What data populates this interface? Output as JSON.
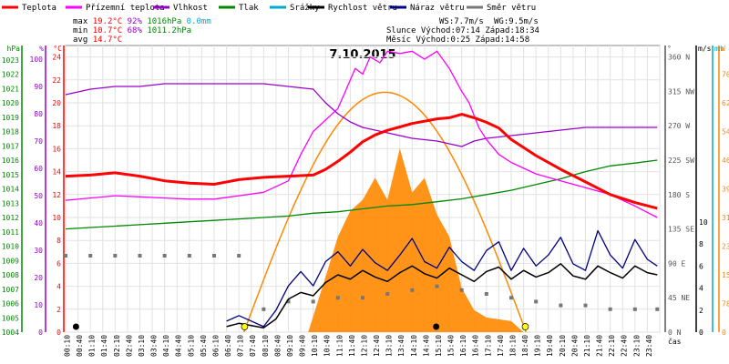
{
  "chart_data": {
    "type": "line",
    "title": "7.10.2015",
    "legend": [
      {
        "label": "Teplota",
        "color": "#ff0000"
      },
      {
        "label": "Přízemní teplota",
        "color": "#ff00ff"
      },
      {
        "label": "Vlhkost",
        "color": "#9900cc"
      },
      {
        "label": "Tlak",
        "color": "#008800"
      },
      {
        "label": "Srážky",
        "color": "#00aacc"
      },
      {
        "label": "Rychlost větru",
        "color": "#000000"
      },
      {
        "label": "Náraz větru",
        "color": "#000080"
      },
      {
        "label": "Směr větru",
        "color": "#777777"
      }
    ],
    "stats": {
      "rows": [
        {
          "label": "max",
          "temp": "19.2°C",
          "hum": "92%",
          "press": "1016hPa",
          "rain": "0.0mm"
        },
        {
          "label": "min",
          "temp": "10.7°C",
          "hum": "68%",
          "press": "1011.2hPa",
          "rain": ""
        },
        {
          "label": "avg",
          "temp": "14.7°C",
          "hum": "",
          "press": "",
          "rain": ""
        }
      ],
      "wind": "WS:7.7m/s",
      "gust": "WG:9.5m/s",
      "sun": "Slunce Východ:07:14  Západ:18:34",
      "moon": "Měsíc  Východ:0:25   Západ:14:58"
    },
    "axes": {
      "hpa_label": "hPa",
      "hpa_ticks": [
        "1004",
        "1005",
        "1006",
        "1007",
        "1008",
        "1009",
        "1010",
        "1011",
        "1012",
        "1013",
        "1014",
        "1015",
        "1016",
        "1017",
        "1018",
        "1019",
        "1020",
        "1021",
        "1022",
        "1023"
      ],
      "pct_label": "%",
      "pct_ticks": [
        "0",
        "10",
        "20",
        "30",
        "40",
        "50",
        "60",
        "70",
        "80",
        "90",
        "100"
      ],
      "c_label": "°C",
      "c_ticks": [
        "0",
        "2",
        "4",
        "6",
        "8",
        "10",
        "12",
        "14",
        "16",
        "18",
        "20",
        "22",
        "24"
      ],
      "deg_label": "°",
      "deg_ticks": [
        "0 N",
        "45 NE",
        "90 E",
        "135 SE",
        "180 S",
        "225 SW",
        "270 W",
        "315 NW",
        "360 N"
      ],
      "ms_label": "m/s",
      "ms_ticks": [
        "0",
        "2",
        "4",
        "6",
        "8",
        "10"
      ],
      "mm_label": "mm",
      "mm_ticks": [
        "0",
        "78",
        "156",
        "234",
        "312",
        "390",
        "468",
        "546",
        "624",
        "702"
      ],
      "w_label": "W",
      "x_label": "čas",
      "x_ticks": [
        "00:10",
        "00:40",
        "01:10",
        "01:40",
        "02:10",
        "02:40",
        "03:10",
        "03:40",
        "04:10",
        "04:40",
        "05:10",
        "05:40",
        "06:10",
        "06:40",
        "07:10",
        "07:40",
        "08:10",
        "08:40",
        "09:10",
        "09:40",
        "10:10",
        "10:40",
        "11:10",
        "11:40",
        "12:10",
        "12:40",
        "13:10",
        "13:40",
        "14:10",
        "14:40",
        "15:10",
        "15:40",
        "16:10",
        "16:40",
        "17:10",
        "17:40",
        "18:10",
        "18:40",
        "19:10",
        "19:40",
        "20:10",
        "20:40",
        "21:10",
        "21:40",
        "22:10",
        "22:40",
        "23:10",
        "23:40"
      ]
    },
    "x_range_hours": [
      0,
      24
    ],
    "series": [
      {
        "name": "Teplota",
        "unit": "°C",
        "color": "#ff0000",
        "points": [
          [
            0,
            13.6
          ],
          [
            1,
            13.7
          ],
          [
            2,
            13.9
          ],
          [
            3,
            13.6
          ],
          [
            4,
            13.2
          ],
          [
            5,
            13.0
          ],
          [
            6,
            12.9
          ],
          [
            7,
            13.3
          ],
          [
            8,
            13.5
          ],
          [
            9,
            13.6
          ],
          [
            10,
            13.7
          ],
          [
            10.5,
            14.2
          ],
          [
            11,
            14.9
          ],
          [
            11.5,
            15.7
          ],
          [
            12,
            16.6
          ],
          [
            12.5,
            17.2
          ],
          [
            13,
            17.6
          ],
          [
            13.5,
            17.9
          ],
          [
            14,
            18.2
          ],
          [
            14.5,
            18.4
          ],
          [
            15,
            18.6
          ],
          [
            15.5,
            18.7
          ],
          [
            16,
            19.0
          ],
          [
            16.5,
            18.7
          ],
          [
            17,
            18.3
          ],
          [
            17.5,
            17.8
          ],
          [
            18,
            16.8
          ],
          [
            19,
            15.4
          ],
          [
            20,
            14.2
          ],
          [
            21,
            13.1
          ],
          [
            22,
            12.0
          ],
          [
            23,
            11.3
          ],
          [
            23.9,
            10.8
          ]
        ]
      },
      {
        "name": "Přízemní teplota",
        "unit": "°C",
        "color": "#ff00ff",
        "points": [
          [
            0,
            11.5
          ],
          [
            1,
            11.7
          ],
          [
            2,
            11.9
          ],
          [
            3,
            11.8
          ],
          [
            4,
            11.7
          ],
          [
            5,
            11.6
          ],
          [
            6,
            11.6
          ],
          [
            7,
            11.9
          ],
          [
            8,
            12.2
          ],
          [
            9,
            13.2
          ],
          [
            9.5,
            15.5
          ],
          [
            10,
            17.5
          ],
          [
            10.5,
            18.5
          ],
          [
            11,
            19.5
          ],
          [
            11.3,
            21.0
          ],
          [
            11.7,
            23.0
          ],
          [
            12,
            22.5
          ],
          [
            12.3,
            24.0
          ],
          [
            12.7,
            23.5
          ],
          [
            13,
            24.5
          ],
          [
            13.5,
            24.3
          ],
          [
            14,
            24.5
          ],
          [
            14.5,
            23.8
          ],
          [
            15,
            24.5
          ],
          [
            15.5,
            23.0
          ],
          [
            16,
            21.0
          ],
          [
            16.3,
            20.0
          ],
          [
            16.7,
            17.8
          ],
          [
            17,
            16.8
          ],
          [
            17.5,
            15.5
          ],
          [
            18,
            14.8
          ],
          [
            19,
            13.8
          ],
          [
            20,
            13.2
          ],
          [
            21,
            12.6
          ],
          [
            22,
            12.0
          ],
          [
            23,
            11.0
          ],
          [
            23.9,
            10.0
          ]
        ]
      },
      {
        "name": "Vlhkost",
        "unit": "%",
        "color": "#9900cc",
        "points": [
          [
            0,
            87
          ],
          [
            1,
            89
          ],
          [
            2,
            90
          ],
          [
            3,
            90
          ],
          [
            4,
            91
          ],
          [
            5,
            91
          ],
          [
            6,
            91
          ],
          [
            7,
            91
          ],
          [
            8,
            91
          ],
          [
            9,
            90
          ],
          [
            10,
            89
          ],
          [
            10.5,
            84
          ],
          [
            11,
            80
          ],
          [
            11.5,
            77
          ],
          [
            12,
            75
          ],
          [
            13,
            73
          ],
          [
            14,
            71
          ],
          [
            15,
            70
          ],
          [
            16,
            68
          ],
          [
            16.5,
            70
          ],
          [
            17,
            71
          ],
          [
            18,
            72
          ],
          [
            19,
            73
          ],
          [
            20,
            74
          ],
          [
            21,
            75
          ],
          [
            22,
            75
          ],
          [
            23,
            75
          ],
          [
            23.9,
            75
          ]
        ]
      },
      {
        "name": "Tlak",
        "unit": "hPa",
        "color": "#008800",
        "points": [
          [
            0,
            1011.2
          ],
          [
            1,
            1011.3
          ],
          [
            2,
            1011.4
          ],
          [
            3,
            1011.5
          ],
          [
            4,
            1011.6
          ],
          [
            5,
            1011.7
          ],
          [
            6,
            1011.8
          ],
          [
            7,
            1011.9
          ],
          [
            8,
            1012.0
          ],
          [
            9,
            1012.1
          ],
          [
            10,
            1012.3
          ],
          [
            11,
            1012.4
          ],
          [
            12,
            1012.6
          ],
          [
            13,
            1012.8
          ],
          [
            14,
            1012.9
          ],
          [
            15,
            1013.1
          ],
          [
            16,
            1013.3
          ],
          [
            17,
            1013.6
          ],
          [
            18,
            1013.9
          ],
          [
            19,
            1014.3
          ],
          [
            20,
            1014.7
          ],
          [
            21,
            1015.2
          ],
          [
            22,
            1015.6
          ],
          [
            23,
            1015.8
          ],
          [
            23.9,
            1016.0
          ]
        ]
      },
      {
        "name": "Rychlost větru",
        "unit": "m/s",
        "color": "#000000",
        "points": [
          [
            6.5,
            0.5
          ],
          [
            7,
            0.8
          ],
          [
            8,
            0.4
          ],
          [
            8.5,
            1.2
          ],
          [
            9,
            3.0
          ],
          [
            9.5,
            3.6
          ],
          [
            10,
            3.3
          ],
          [
            10.5,
            4.5
          ],
          [
            11,
            5.2
          ],
          [
            11.5,
            4.8
          ],
          [
            12,
            5.6
          ],
          [
            12.5,
            5.0
          ],
          [
            13,
            4.6
          ],
          [
            13.5,
            5.4
          ],
          [
            14,
            6.0
          ],
          [
            14.5,
            5.3
          ],
          [
            15,
            4.9
          ],
          [
            15.5,
            5.8
          ],
          [
            16,
            5.2
          ],
          [
            16.5,
            4.6
          ],
          [
            17,
            5.5
          ],
          [
            17.5,
            5.9
          ],
          [
            18,
            4.8
          ],
          [
            18.5,
            5.6
          ],
          [
            19,
            5.0
          ],
          [
            19.5,
            5.4
          ],
          [
            20,
            6.2
          ],
          [
            20.5,
            5.1
          ],
          [
            21,
            4.8
          ],
          [
            21.5,
            6.0
          ],
          [
            22,
            5.4
          ],
          [
            22.5,
            4.9
          ],
          [
            23,
            6.0
          ],
          [
            23.5,
            5.4
          ],
          [
            23.9,
            5.2
          ]
        ]
      },
      {
        "name": "Náraz větru",
        "unit": "m/s",
        "color": "#000080",
        "points": [
          [
            6.5,
            1.0
          ],
          [
            7,
            1.5
          ],
          [
            8,
            0.5
          ],
          [
            8.5,
            2.0
          ],
          [
            9,
            4.2
          ],
          [
            9.5,
            5.5
          ],
          [
            10,
            4.2
          ],
          [
            10.5,
            6.4
          ],
          [
            11,
            7.3
          ],
          [
            11.5,
            6.0
          ],
          [
            12,
            7.5
          ],
          [
            12.5,
            6.3
          ],
          [
            13,
            5.6
          ],
          [
            13.5,
            7.0
          ],
          [
            14,
            8.5
          ],
          [
            14.5,
            6.4
          ],
          [
            15,
            5.8
          ],
          [
            15.5,
            7.7
          ],
          [
            16,
            6.4
          ],
          [
            16.5,
            5.6
          ],
          [
            17,
            7.4
          ],
          [
            17.5,
            8.2
          ],
          [
            18,
            5.6
          ],
          [
            18.5,
            7.6
          ],
          [
            19,
            6.0
          ],
          [
            19.5,
            7.0
          ],
          [
            20,
            8.6
          ],
          [
            20.5,
            6.2
          ],
          [
            21,
            5.6
          ],
          [
            21.5,
            9.2
          ],
          [
            22,
            7.0
          ],
          [
            22.5,
            5.8
          ],
          [
            23,
            8.4
          ],
          [
            23.5,
            6.6
          ],
          [
            23.9,
            6.0
          ]
        ]
      },
      {
        "name": "Směr větru",
        "unit": "°",
        "color": "#777777",
        "points": [
          [
            0,
            100
          ],
          [
            1,
            100
          ],
          [
            2,
            100
          ],
          [
            3,
            100
          ],
          [
            4,
            100
          ],
          [
            5,
            100
          ],
          [
            6,
            100
          ],
          [
            7,
            100
          ],
          [
            8,
            30
          ],
          [
            9,
            40
          ],
          [
            10,
            40
          ],
          [
            11,
            45
          ],
          [
            12,
            45
          ],
          [
            13,
            50
          ],
          [
            14,
            55
          ],
          [
            15,
            60
          ],
          [
            16,
            55
          ],
          [
            17,
            50
          ],
          [
            18,
            45
          ],
          [
            19,
            40
          ],
          [
            20,
            35
          ],
          [
            21,
            35
          ],
          [
            22,
            30
          ],
          [
            23,
            30
          ],
          [
            23.9,
            30
          ]
        ]
      },
      {
        "name": "Sluneční záření",
        "unit": "W",
        "color": "#ff8800",
        "points": [
          [
            9.8,
            0
          ],
          [
            10.5,
            150
          ],
          [
            11,
            260
          ],
          [
            11.5,
            330
          ],
          [
            12,
            360
          ],
          [
            12.5,
            420
          ],
          [
            13,
            360
          ],
          [
            13.5,
            500
          ],
          [
            14,
            380
          ],
          [
            14.5,
            420
          ],
          [
            15,
            320
          ],
          [
            15.5,
            260
          ],
          [
            16,
            120
          ],
          [
            16.5,
            60
          ],
          [
            17,
            40
          ],
          [
            18,
            30
          ],
          [
            18.5,
            0
          ]
        ]
      }
    ],
    "theoretical_radiation_max_w": 702
  }
}
